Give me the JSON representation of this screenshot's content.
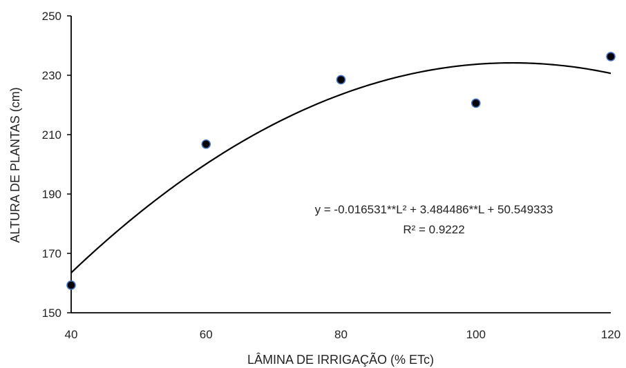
{
  "chart_data": {
    "type": "scatter",
    "xlabel": "LÂMINA DE IRRIGAÇÃO (% ETc)",
    "ylabel": "ALTURA DE PLANTAS (cm)",
    "xlim": [
      40,
      120
    ],
    "ylim": [
      150,
      250
    ],
    "xticks": [
      40,
      60,
      80,
      100,
      120
    ],
    "yticks": [
      150,
      170,
      190,
      210,
      230,
      250
    ],
    "grid": false,
    "legend": "none",
    "points": [
      {
        "x": 40,
        "y": 159.3
      },
      {
        "x": 60,
        "y": 206.8
      },
      {
        "x": 80,
        "y": 228.5
      },
      {
        "x": 100,
        "y": 220.6
      },
      {
        "x": 120,
        "y": 236.3
      }
    ],
    "trendline": {
      "type": "polynomial",
      "coefficients": [
        -0.016531,
        3.484486,
        50.549333
      ],
      "equation": "y = -0.016531**L² + 3.484486**L + 50.549333",
      "r2": "R² = 0.9222"
    },
    "colors": {
      "marker_fill": "#000000",
      "marker_stroke": "#4472C4",
      "line": "#000000",
      "axis": "#000000",
      "text": "#222222"
    }
  }
}
